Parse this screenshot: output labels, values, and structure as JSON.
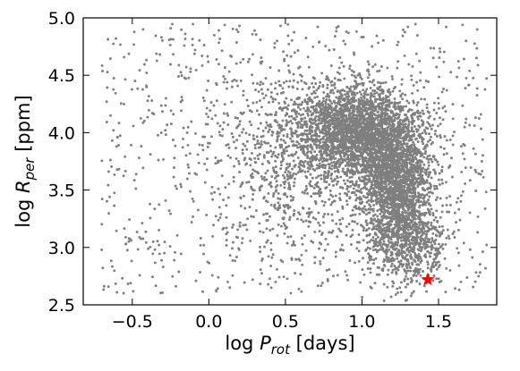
{
  "chart_data": {
    "type": "scatter",
    "xlabel": {
      "prefix": "log ",
      "symbol": "P",
      "subscript": "rot",
      "suffix": " [days]"
    },
    "ylabel": {
      "prefix": "log ",
      "symbol": "R",
      "subscript": "per",
      "suffix": " [ppm]"
    },
    "xlim": [
      -0.82,
      1.88
    ],
    "ylim": [
      2.5,
      5.0
    ],
    "xticks": [
      -0.5,
      0.0,
      0.5,
      1.0,
      1.5
    ],
    "xtick_labels": [
      "−0.5",
      "0.0",
      "0.5",
      "1.0",
      "1.5"
    ],
    "yticks": [
      2.5,
      3.0,
      3.5,
      4.0,
      4.5,
      5.0
    ],
    "ytick_labels": [
      "2.5",
      "3.0",
      "3.5",
      "4.0",
      "4.5",
      "5.0"
    ],
    "grid": false,
    "legend": "none",
    "colors": {
      "points": "#7f7f7f",
      "highlight": "#ff0000",
      "axes": "#000000"
    },
    "series": [
      {
        "marker": "dot",
        "density_model": {
          "description": "approximate point cloud read from the figure: a dense core of stars plus a sparse diffuse population",
          "components": [
            {
              "weight": 0.34,
              "mean": [
                0.95,
                4.02
              ],
              "std": [
                0.19,
                0.2
              ]
            },
            {
              "weight": 0.3,
              "mean": [
                1.22,
                3.6
              ],
              "std": [
                0.12,
                0.27
              ]
            },
            {
              "weight": 0.1,
              "mean": [
                1.3,
                3.05
              ],
              "std": [
                0.13,
                0.2
              ]
            },
            {
              "weight": 0.12,
              "mean": [
                0.6,
                3.75
              ],
              "std": [
                0.3,
                0.42
              ]
            },
            {
              "weight": 0.14,
              "uniform_x": [
                -0.7,
                1.82
              ],
              "uniform_y": [
                2.6,
                4.95
              ]
            }
          ],
          "approx_point_count": 6500
        }
      },
      {
        "marker": "star",
        "points": [
          {
            "x": 1.43,
            "y": 2.72
          }
        ]
      }
    ]
  }
}
